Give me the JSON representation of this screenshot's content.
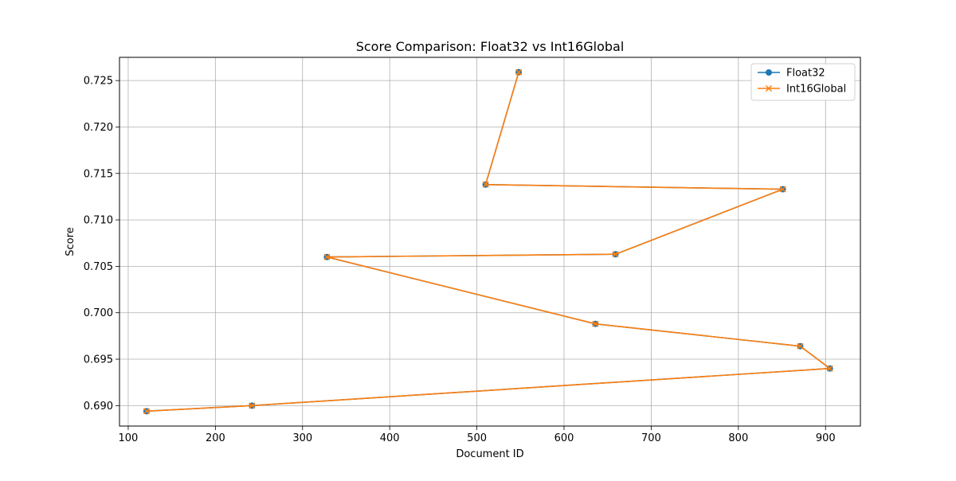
{
  "chart_data": {
    "type": "line",
    "title": "Score Comparison: Float32 vs Int16Global",
    "xlabel": "Document ID",
    "ylabel": "Score",
    "xlim": [
      90,
      940
    ],
    "ylim": [
      0.6878,
      0.7275
    ],
    "x_ticks": [
      100,
      200,
      300,
      400,
      500,
      600,
      700,
      800,
      900
    ],
    "y_ticks": [
      0.69,
      0.695,
      0.7,
      0.705,
      0.71,
      0.715,
      0.72,
      0.725
    ],
    "grid": true,
    "legend_position": "top-right",
    "series": [
      {
        "name": "Float32",
        "color": "#1f77b4",
        "marker": "circle",
        "x": [
          548,
          510,
          851,
          659,
          328,
          636,
          871,
          905,
          242,
          121
        ],
        "y": [
          0.7259,
          0.7138,
          0.7133,
          0.7063,
          0.706,
          0.6988,
          0.6964,
          0.694,
          0.69,
          0.6894
        ]
      },
      {
        "name": "Int16Global",
        "color": "#ff7f0e",
        "marker": "x",
        "x": [
          548,
          510,
          851,
          659,
          328,
          636,
          871,
          905,
          242,
          121
        ],
        "y": [
          0.7259,
          0.7138,
          0.7133,
          0.7063,
          0.706,
          0.6988,
          0.6964,
          0.694,
          0.69,
          0.6894
        ]
      }
    ]
  }
}
